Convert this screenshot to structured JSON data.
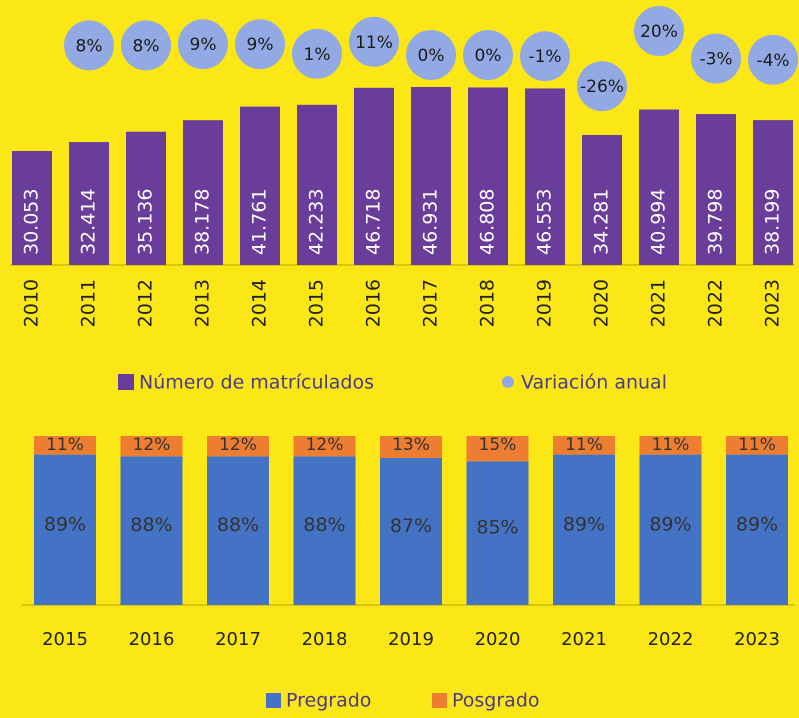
{
  "chart_data": [
    {
      "type": "bar",
      "categories": [
        "2010",
        "2011",
        "2012",
        "2013",
        "2014",
        "2015",
        "2016",
        "2017",
        "2018",
        "2019",
        "2020",
        "2021",
        "2022",
        "2023"
      ],
      "series": [
        {
          "name": "Número de matrículados",
          "type": "bar",
          "color": "#6a3d9a",
          "values": [
            30053,
            32414,
            35136,
            38178,
            41761,
            42233,
            46718,
            46931,
            46808,
            46553,
            34281,
            40994,
            39798,
            38199
          ],
          "value_labels": [
            "30.053",
            "32.414",
            "35.136",
            "38.178",
            "41.761",
            "42.233",
            "46.718",
            "46.931",
            "46.808",
            "46.553",
            "34.281",
            "40.994",
            "39.798",
            "38.199"
          ]
        },
        {
          "name": "Variación anual",
          "type": "scatter",
          "color": "#93a9e3",
          "values": [
            null,
            8,
            8,
            9,
            9,
            1,
            11,
            0,
            0,
            -1,
            -26,
            20,
            -3,
            -4
          ],
          "value_labels": [
            null,
            "8%",
            "8%",
            "9%",
            "9%",
            "1%",
            "11%",
            "0%",
            "0%",
            "-1%",
            "-26%",
            "20%",
            "-3%",
            "-4%"
          ]
        }
      ]
    },
    {
      "type": "stacked_bar",
      "categories": [
        "2015",
        "2016",
        "2017",
        "2018",
        "2019",
        "2020",
        "2021",
        "2022",
        "2023"
      ],
      "series": [
        {
          "name": "Pregrado",
          "color": "#4472c4",
          "values": [
            89,
            88,
            88,
            88,
            87,
            85,
            89,
            89,
            89
          ],
          "value_labels": [
            "89%",
            "88%",
            "88%",
            "88%",
            "87%",
            "85%",
            "89%",
            "89%",
            "89%"
          ]
        },
        {
          "name": "Posgrado",
          "color": "#ed7d31",
          "values": [
            11,
            12,
            12,
            12,
            13,
            15,
            11,
            11,
            11
          ],
          "value_labels": [
            "11%",
            "12%",
            "12%",
            "12%",
            "13%",
            "15%",
            "11%",
            "11%",
            "11%"
          ]
        }
      ]
    }
  ]
}
